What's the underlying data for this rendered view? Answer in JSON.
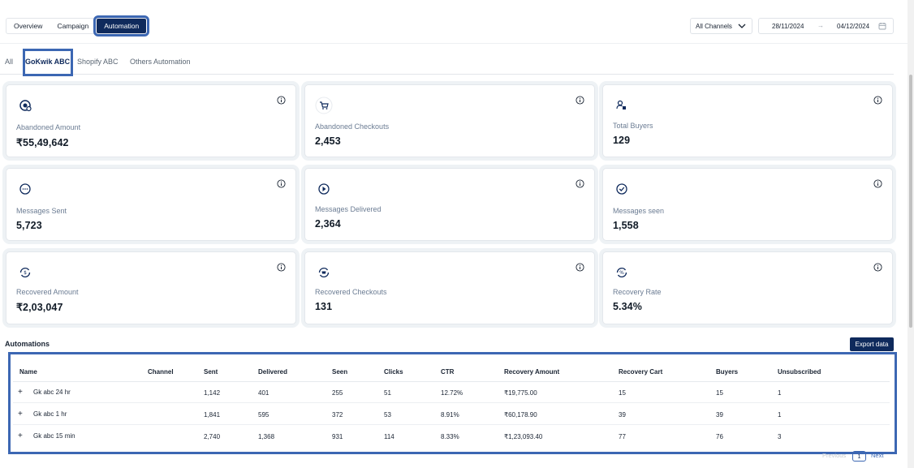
{
  "top_tabs": [
    "Overview",
    "Campaign",
    "Automation"
  ],
  "active_top_tab": "Automation",
  "channel_select": {
    "value": "All Channels"
  },
  "date_range": {
    "start": "28/11/2024",
    "separator": "→",
    "end": "04/12/2024"
  },
  "sub_tabs": [
    "All",
    "GoKwik ABC",
    "Shopify ABC",
    "Others Automation"
  ],
  "active_sub_tab": "GoKwik ABC",
  "cards": [
    {
      "label": "Abandoned Amount",
      "value": "₹55,49,642",
      "icon": "money-icon"
    },
    {
      "label": "Abandoned Checkouts",
      "value": "2,453",
      "icon": "cart-icon"
    },
    {
      "label": "Total Buyers",
      "value": "129",
      "icon": "buyers-icon"
    },
    {
      "label": "Messages Sent",
      "value": "5,723",
      "icon": "message-icon"
    },
    {
      "label": "Messages Delivered",
      "value": "2,364",
      "icon": "delivered-icon"
    },
    {
      "label": "Messages seen",
      "value": "1,558",
      "icon": "seen-check-icon"
    },
    {
      "label": "Recovered Amount",
      "value": "₹2,03,047",
      "icon": "recover-amount-icon"
    },
    {
      "label": "Recovered Checkouts",
      "value": "131",
      "icon": "recover-checkout-icon"
    },
    {
      "label": "Recovery Rate",
      "value": "5.34%",
      "icon": "recovery-rate-icon"
    }
  ],
  "automations": {
    "title": "Automations",
    "export_label": "Export data",
    "columns": [
      "Name",
      "Channel",
      "Sent",
      "Delivered",
      "Seen",
      "Clicks",
      "CTR",
      "Recovery Amount",
      "Recovery Cart",
      "Buyers",
      "Unsubscribed"
    ],
    "rows": [
      {
        "name": "Gk abc 24 hr",
        "channel": "",
        "sent": "1,142",
        "delivered": "401",
        "seen": "255",
        "clicks": "51",
        "ctr": "12.72%",
        "recovery_amount": "₹19,775.00",
        "recovery_cart": "15",
        "buyers": "15",
        "unsubscribed": "1"
      },
      {
        "name": "Gk abc 1 hr",
        "channel": "",
        "sent": "1,841",
        "delivered": "595",
        "seen": "372",
        "clicks": "53",
        "ctr": "8.91%",
        "recovery_amount": "₹60,178.90",
        "recovery_cart": "39",
        "buyers": "39",
        "unsubscribed": "1"
      },
      {
        "name": "Gk abc 15 min",
        "channel": "",
        "sent": "2,740",
        "delivered": "1,368",
        "seen": "931",
        "clicks": "114",
        "ctr": "8.33%",
        "recovery_amount": "₹1,23,093.40",
        "recovery_cart": "77",
        "buyers": "76",
        "unsubscribed": "3"
      }
    ]
  },
  "pagination": {
    "previous": "Previous",
    "page": "1",
    "next": "Next"
  },
  "colors": {
    "primary": "#0f2a5c",
    "highlight": "#3c67b3",
    "label": "#6b7c93"
  }
}
